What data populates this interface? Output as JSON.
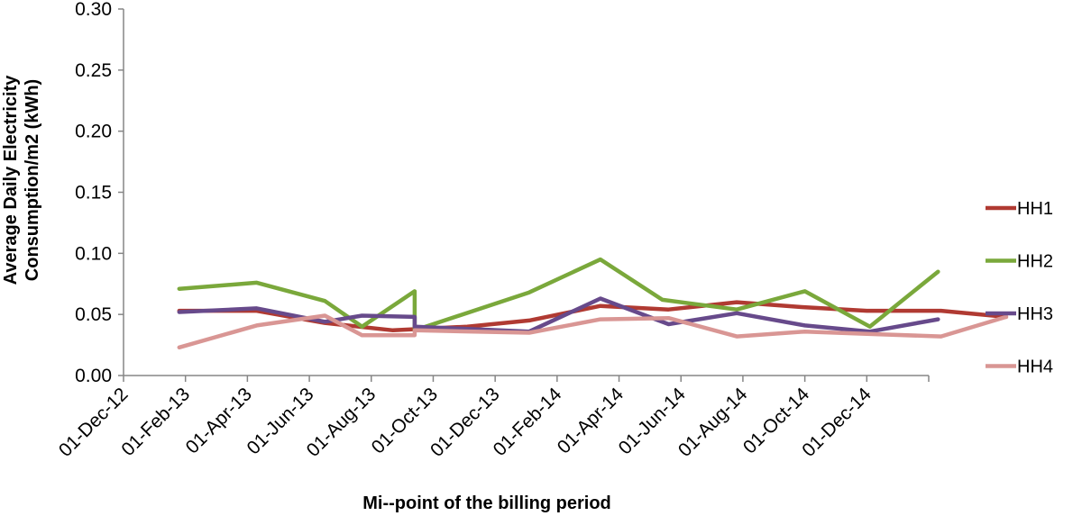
{
  "chart_data": {
    "type": "line",
    "title": "",
    "xlabel": "Mi--point of the billing period",
    "ylabel_line1": "Average Daily Electricity",
    "ylabel_line2": "Consumption/m2  (kWh)",
    "ylim": [
      0,
      0.3
    ],
    "yticks": [
      "0.00",
      "0.05",
      "0.10",
      "0.15",
      "0.20",
      "0.25",
      "0.30"
    ],
    "xticks": [
      "01-Dec-12",
      "01-Feb-13",
      "01-Apr-13",
      "01-Jun-13",
      "01-Aug-13",
      "01-Oct-13",
      "01-Dec-13",
      "01-Feb-14",
      "01-Apr-14",
      "01-Jun-14",
      "01-Aug-14",
      "01-Oct-14",
      "01-Dec-14"
    ],
    "legend_position": "right",
    "grid": false,
    "series": [
      {
        "name": "HH1",
        "color": "#B03A32",
        "points": [
          [
            1.8,
            0.053
          ],
          [
            4.3,
            0.053
          ],
          [
            6.5,
            0.043
          ],
          [
            8.7,
            0.037
          ],
          [
            11.1,
            0.04
          ],
          [
            13.1,
            0.045
          ],
          [
            15.4,
            0.057
          ],
          [
            17.6,
            0.054
          ],
          [
            19.8,
            0.06
          ],
          [
            21.9,
            0.056
          ],
          [
            24.0,
            0.053
          ],
          [
            26.4,
            0.053
          ],
          [
            28.5,
            0.048
          ]
        ]
      },
      {
        "name": "HH2",
        "color": "#7AA83B",
        "points": [
          [
            1.8,
            0.071
          ],
          [
            4.3,
            0.076
          ],
          [
            6.5,
            0.061
          ],
          [
            7.7,
            0.04
          ],
          [
            9.4,
            0.069
          ],
          [
            9.4,
            0.037
          ],
          [
            13.1,
            0.068
          ],
          [
            15.4,
            0.095
          ],
          [
            17.4,
            0.062
          ],
          [
            19.8,
            0.054
          ],
          [
            22.0,
            0.069
          ],
          [
            24.1,
            0.04
          ],
          [
            26.3,
            0.085
          ]
        ]
      },
      {
        "name": "HH3",
        "color": "#674A8B",
        "points": [
          [
            1.8,
            0.052
          ],
          [
            4.3,
            0.055
          ],
          [
            6.5,
            0.044
          ],
          [
            7.7,
            0.049
          ],
          [
            9.4,
            0.048
          ],
          [
            9.4,
            0.04
          ],
          [
            13.1,
            0.036
          ],
          [
            15.4,
            0.063
          ],
          [
            17.6,
            0.042
          ],
          [
            19.8,
            0.051
          ],
          [
            22.0,
            0.041
          ],
          [
            24.1,
            0.036
          ],
          [
            26.3,
            0.046
          ]
        ]
      },
      {
        "name": "HH4",
        "color": "#D99694",
        "points": [
          [
            1.8,
            0.023
          ],
          [
            4.3,
            0.041
          ],
          [
            6.5,
            0.049
          ],
          [
            7.7,
            0.033
          ],
          [
            9.4,
            0.033
          ],
          [
            9.4,
            0.037
          ],
          [
            13.1,
            0.035
          ],
          [
            15.4,
            0.046
          ],
          [
            17.6,
            0.047
          ],
          [
            19.8,
            0.032
          ],
          [
            22.0,
            0.036
          ],
          [
            24.1,
            0.034
          ],
          [
            26.4,
            0.032
          ],
          [
            28.5,
            0.048
          ]
        ]
      }
    ]
  }
}
